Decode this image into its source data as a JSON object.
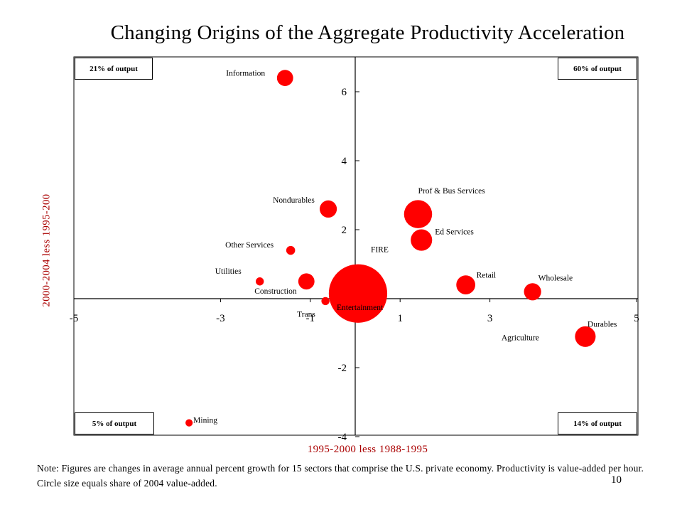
{
  "title": "Changing Origins of the Aggregate Productivity Acceleration",
  "note": "Note: Figures are changes in average annual percent growth for 15 sectors that comprise the U.S. private economy.  Productivity is value-added per hour.  Circle size equals share of 2004 value-added.",
  "slide_number": "10",
  "quadrant_boxes": {
    "top_left": "21% of output",
    "top_right": "60% of output",
    "bottom_left": "5% of output",
    "bottom_right": "14% of output"
  },
  "colors": {
    "bubble": "#ff0000",
    "axis_label": "#aa0000",
    "axes": "#000000"
  },
  "chart_data": {
    "type": "scatter",
    "title": "Changing Origins of the Aggregate Productivity Acceleration",
    "xlabel": "1995-2000 less 1988-1995",
    "ylabel": "2000-2004 less 1995-200",
    "xlim": [
      -5,
      5
    ],
    "ylim": [
      -4,
      7
    ],
    "x_ticks": [
      "-5",
      "-3",
      "-1",
      "1",
      "3",
      "5"
    ],
    "y_ticks": [
      "6",
      "4",
      "2",
      "0",
      "-2",
      "-4"
    ],
    "grid": false,
    "points": [
      {
        "name": "Information",
        "x": -2.0,
        "y": 6.4,
        "size": 4
      },
      {
        "name": "Nondurables",
        "x": -1.0,
        "y": 2.6,
        "size": 4.5
      },
      {
        "name": "Other Services",
        "x": -1.9,
        "y": 1.4,
        "size": 1.2
      },
      {
        "name": "Utilities",
        "x": -3.45,
        "y": 0.5,
        "size": 1
      },
      {
        "name": "Construction",
        "x": -1.8,
        "y": 0.5,
        "size": 4
      },
      {
        "name": "Trans",
        "x": -1.05,
        "y": -0.07,
        "size": 1
      },
      {
        "name": "FIRE",
        "x": 0.05,
        "y": 0.15,
        "size": 52
      },
      {
        "name": "Prof & Bus Services",
        "x": 2.1,
        "y": 2.45,
        "size": 12
      },
      {
        "name": "Ed Services",
        "x": 2.15,
        "y": 1.7,
        "size": 7
      },
      {
        "name": "Entertainment",
        "x": 1.0,
        "y": 0.0,
        "size": 0.3
      },
      {
        "name": "Retail",
        "x": 3.0,
        "y": 0.4,
        "size": 5.5
      },
      {
        "name": "Wholesale",
        "x": 4.2,
        "y": 0.2,
        "size": 4.5
      },
      {
        "name": "Agriculture",
        "x": 4.4,
        "y": -0.5,
        "size": 0.3
      },
      {
        "name": "Durables",
        "x": 5.35,
        "y": -1.1,
        "size": 6.5
      },
      {
        "name": "Mining",
        "x": -4.8,
        "y": -3.6,
        "size": 0.8
      }
    ]
  }
}
